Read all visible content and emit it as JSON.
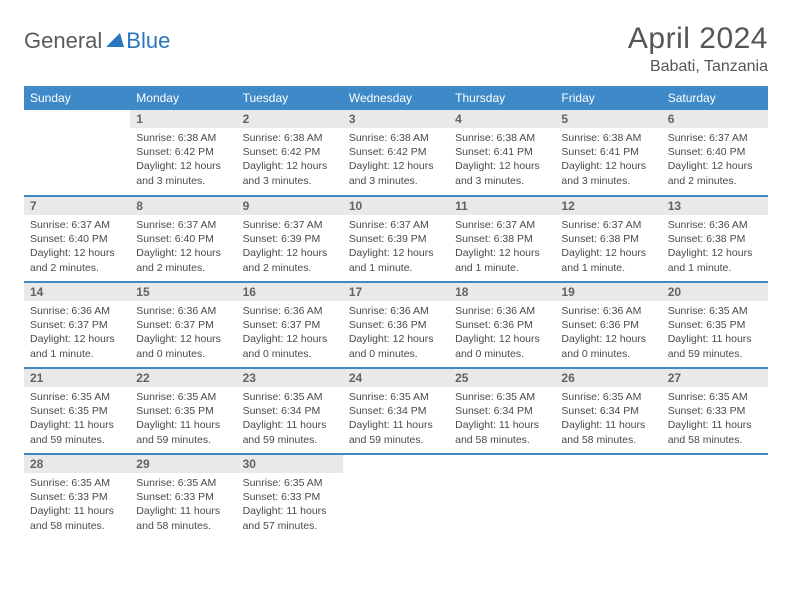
{
  "brand": {
    "part1": "General",
    "part2": "Blue"
  },
  "title": "April 2024",
  "location": "Babati, Tanzania",
  "colors": {
    "header_bg": "#3e8ac9",
    "header_text": "#ffffff",
    "daynum_bg": "#e9e9e9",
    "daynum_text": "#636363",
    "row_border": "#3e8ac9",
    "body_text": "#4a4a4a",
    "title_text": "#555555",
    "logo_blue": "#2977bd",
    "logo_grey": "#5a5a5a"
  },
  "weekdays": [
    "Sunday",
    "Monday",
    "Tuesday",
    "Wednesday",
    "Thursday",
    "Friday",
    "Saturday"
  ],
  "weeks": [
    [
      null,
      {
        "n": "1",
        "sr": "Sunrise: 6:38 AM",
        "ss": "Sunset: 6:42 PM",
        "dl": "Daylight: 12 hours and 3 minutes."
      },
      {
        "n": "2",
        "sr": "Sunrise: 6:38 AM",
        "ss": "Sunset: 6:42 PM",
        "dl": "Daylight: 12 hours and 3 minutes."
      },
      {
        "n": "3",
        "sr": "Sunrise: 6:38 AM",
        "ss": "Sunset: 6:42 PM",
        "dl": "Daylight: 12 hours and 3 minutes."
      },
      {
        "n": "4",
        "sr": "Sunrise: 6:38 AM",
        "ss": "Sunset: 6:41 PM",
        "dl": "Daylight: 12 hours and 3 minutes."
      },
      {
        "n": "5",
        "sr": "Sunrise: 6:38 AM",
        "ss": "Sunset: 6:41 PM",
        "dl": "Daylight: 12 hours and 3 minutes."
      },
      {
        "n": "6",
        "sr": "Sunrise: 6:37 AM",
        "ss": "Sunset: 6:40 PM",
        "dl": "Daylight: 12 hours and 2 minutes."
      }
    ],
    [
      {
        "n": "7",
        "sr": "Sunrise: 6:37 AM",
        "ss": "Sunset: 6:40 PM",
        "dl": "Daylight: 12 hours and 2 minutes."
      },
      {
        "n": "8",
        "sr": "Sunrise: 6:37 AM",
        "ss": "Sunset: 6:40 PM",
        "dl": "Daylight: 12 hours and 2 minutes."
      },
      {
        "n": "9",
        "sr": "Sunrise: 6:37 AM",
        "ss": "Sunset: 6:39 PM",
        "dl": "Daylight: 12 hours and 2 minutes."
      },
      {
        "n": "10",
        "sr": "Sunrise: 6:37 AM",
        "ss": "Sunset: 6:39 PM",
        "dl": "Daylight: 12 hours and 1 minute."
      },
      {
        "n": "11",
        "sr": "Sunrise: 6:37 AM",
        "ss": "Sunset: 6:38 PM",
        "dl": "Daylight: 12 hours and 1 minute."
      },
      {
        "n": "12",
        "sr": "Sunrise: 6:37 AM",
        "ss": "Sunset: 6:38 PM",
        "dl": "Daylight: 12 hours and 1 minute."
      },
      {
        "n": "13",
        "sr": "Sunrise: 6:36 AM",
        "ss": "Sunset: 6:38 PM",
        "dl": "Daylight: 12 hours and 1 minute."
      }
    ],
    [
      {
        "n": "14",
        "sr": "Sunrise: 6:36 AM",
        "ss": "Sunset: 6:37 PM",
        "dl": "Daylight: 12 hours and 1 minute."
      },
      {
        "n": "15",
        "sr": "Sunrise: 6:36 AM",
        "ss": "Sunset: 6:37 PM",
        "dl": "Daylight: 12 hours and 0 minutes."
      },
      {
        "n": "16",
        "sr": "Sunrise: 6:36 AM",
        "ss": "Sunset: 6:37 PM",
        "dl": "Daylight: 12 hours and 0 minutes."
      },
      {
        "n": "17",
        "sr": "Sunrise: 6:36 AM",
        "ss": "Sunset: 6:36 PM",
        "dl": "Daylight: 12 hours and 0 minutes."
      },
      {
        "n": "18",
        "sr": "Sunrise: 6:36 AM",
        "ss": "Sunset: 6:36 PM",
        "dl": "Daylight: 12 hours and 0 minutes."
      },
      {
        "n": "19",
        "sr": "Sunrise: 6:36 AM",
        "ss": "Sunset: 6:36 PM",
        "dl": "Daylight: 12 hours and 0 minutes."
      },
      {
        "n": "20",
        "sr": "Sunrise: 6:35 AM",
        "ss": "Sunset: 6:35 PM",
        "dl": "Daylight: 11 hours and 59 minutes."
      }
    ],
    [
      {
        "n": "21",
        "sr": "Sunrise: 6:35 AM",
        "ss": "Sunset: 6:35 PM",
        "dl": "Daylight: 11 hours and 59 minutes."
      },
      {
        "n": "22",
        "sr": "Sunrise: 6:35 AM",
        "ss": "Sunset: 6:35 PM",
        "dl": "Daylight: 11 hours and 59 minutes."
      },
      {
        "n": "23",
        "sr": "Sunrise: 6:35 AM",
        "ss": "Sunset: 6:34 PM",
        "dl": "Daylight: 11 hours and 59 minutes."
      },
      {
        "n": "24",
        "sr": "Sunrise: 6:35 AM",
        "ss": "Sunset: 6:34 PM",
        "dl": "Daylight: 11 hours and 59 minutes."
      },
      {
        "n": "25",
        "sr": "Sunrise: 6:35 AM",
        "ss": "Sunset: 6:34 PM",
        "dl": "Daylight: 11 hours and 58 minutes."
      },
      {
        "n": "26",
        "sr": "Sunrise: 6:35 AM",
        "ss": "Sunset: 6:34 PM",
        "dl": "Daylight: 11 hours and 58 minutes."
      },
      {
        "n": "27",
        "sr": "Sunrise: 6:35 AM",
        "ss": "Sunset: 6:33 PM",
        "dl": "Daylight: 11 hours and 58 minutes."
      }
    ],
    [
      {
        "n": "28",
        "sr": "Sunrise: 6:35 AM",
        "ss": "Sunset: 6:33 PM",
        "dl": "Daylight: 11 hours and 58 minutes."
      },
      {
        "n": "29",
        "sr": "Sunrise: 6:35 AM",
        "ss": "Sunset: 6:33 PM",
        "dl": "Daylight: 11 hours and 58 minutes."
      },
      {
        "n": "30",
        "sr": "Sunrise: 6:35 AM",
        "ss": "Sunset: 6:33 PM",
        "dl": "Daylight: 11 hours and 57 minutes."
      },
      null,
      null,
      null,
      null
    ]
  ]
}
